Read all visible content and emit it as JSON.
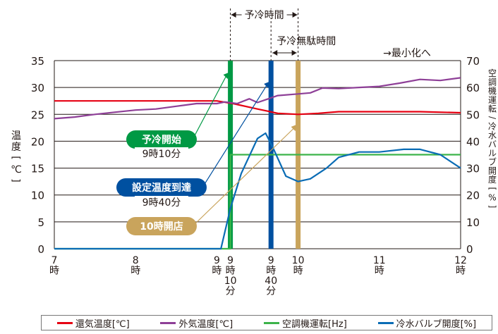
{
  "chart_data": {
    "type": "line",
    "ylabel_left": "温度[℃]",
    "ylabel_right": "空調機運転/冷水バルブ開度[%]",
    "ylim_left": [
      0,
      35
    ],
    "ylim_right": [
      0,
      70
    ],
    "yticks_left": [
      "0",
      "5",
      "10",
      "15",
      "20",
      "25",
      "30",
      "35"
    ],
    "yticks_right": [
      "0",
      "10",
      "20",
      "30",
      "40",
      "50",
      "60",
      "70"
    ],
    "xlim_hours": [
      7,
      12
    ],
    "xticks": [
      {
        "t": 7,
        "label": "7\n時"
      },
      {
        "t": 8,
        "label": "8\n時"
      },
      {
        "t": 9,
        "label": "9\n時"
      },
      {
        "t": 9.1667,
        "label": "9\n時\n10\n分"
      },
      {
        "t": 9.6667,
        "label": "9\n時\n40\n分"
      },
      {
        "t": 10,
        "label": "10\n時"
      },
      {
        "t": 11,
        "label": "11\n時"
      },
      {
        "t": 12,
        "label": "12\n時"
      }
    ],
    "series": [
      {
        "name": "還気温度[℃]",
        "color": "#e60012",
        "axis": "left",
        "x": [
          7,
          8,
          9,
          9.2,
          9.5,
          9.75,
          10,
          10.25,
          10.5,
          11,
          11.5,
          12
        ],
        "y": [
          27.5,
          27.5,
          27.5,
          27.0,
          26.0,
          25.2,
          25.0,
          25.2,
          25.5,
          25.5,
          25.5,
          25.3
        ]
      },
      {
        "name": "外気温度[℃]",
        "color": "#8e3f97",
        "axis": "left",
        "x": [
          7,
          7.25,
          7.5,
          7.75,
          8,
          8.25,
          8.5,
          8.75,
          9,
          9.1,
          9.25,
          9.4,
          9.5,
          9.75,
          10,
          10.15,
          10.3,
          10.5,
          10.75,
          11,
          11.25,
          11.5,
          11.75,
          12
        ],
        "y": [
          24.2,
          24.5,
          25.0,
          25.4,
          25.8,
          26.0,
          26.5,
          27.0,
          27.0,
          27.3,
          27.0,
          27.9,
          27.2,
          28.5,
          28.8,
          29.0,
          29.9,
          29.8,
          30.0,
          30.2,
          30.8,
          31.5,
          31.3,
          31.8
        ]
      },
      {
        "name": "空調機運転[Hz]",
        "color": "#3cb34a",
        "axis": "right",
        "x": [
          7,
          9.1667,
          9.1667,
          12
        ],
        "y": [
          0,
          0,
          35,
          35
        ]
      },
      {
        "name": "冷水バルブ開度[%]",
        "color": "#0a6cb5",
        "axis": "right",
        "x": [
          7,
          8.5,
          9,
          9.05,
          9.1667,
          9.3,
          9.5,
          9.6,
          9.7,
          9.85,
          10,
          10.15,
          10.35,
          10.5,
          10.75,
          11,
          11.3,
          11.5,
          11.75,
          12
        ],
        "y": [
          0,
          0,
          0,
          0,
          15,
          28,
          41,
          43,
          37,
          27,
          25,
          26,
          30,
          34,
          36,
          36,
          37,
          37,
          35,
          30
        ]
      }
    ],
    "events": [
      {
        "name": "予冷開始",
        "time_label": "9時10分",
        "t": 9.1667,
        "color": "#009944"
      },
      {
        "name": "設定温度到達",
        "time_label": "9時40分",
        "t": 9.6667,
        "color": "#0050a0"
      },
      {
        "name": "10時開店",
        "time_label": "",
        "t": 10,
        "color": "#c9a45c"
      }
    ],
    "annotations": {
      "precool_span": "予冷時間",
      "waste_span": "予冷無駄時間",
      "minimize": "→最小化へ"
    },
    "legend_position": "bottom"
  }
}
